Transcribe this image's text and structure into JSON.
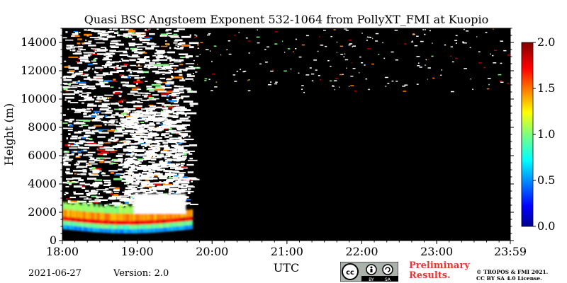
{
  "chart_data": {
    "type": "heatmap",
    "title": "Quasi BSC Angstoem Exponent 532-1064 from PollyXT_FMI at Kuopio",
    "xlabel": "UTC",
    "ylabel": "Height (m)",
    "x_ticks": [
      "18:00",
      "19:00",
      "20:00",
      "21:00",
      "22:00",
      "23:00",
      "23:59"
    ],
    "x_range_hours": [
      18.0,
      23.9833
    ],
    "y_ticks": [
      "0",
      "2000",
      "4000",
      "6000",
      "8000",
      "10000",
      "12000",
      "14000"
    ],
    "y_range_m": [
      0,
      15000
    ],
    "colorbar": {
      "ticks": [
        "0.0",
        "0.5",
        "1.0",
        "1.5",
        "2.0"
      ],
      "range": [
        0.0,
        2.0
      ],
      "colormap": "jet"
    },
    "background_color": "#000000",
    "regions": [
      {
        "x": [
          18.0,
          19.72
        ],
        "y": [
          600,
          1500
        ],
        "value": 0.6
      },
      {
        "x": [
          18.0,
          19.6
        ],
        "y": [
          1500,
          2200
        ],
        "value": 1.4
      },
      {
        "x": [
          18.05,
          19.65
        ],
        "y": [
          2200,
          3000
        ],
        "value": 1.0
      },
      {
        "x": [
          18.0,
          19.7
        ],
        "y": [
          3000,
          15000
        ],
        "value": "noisy, mostly above 2.0 (white)"
      },
      {
        "x": [
          19.7,
          23.9833
        ],
        "y": [
          0,
          15000
        ],
        "value": "no data (black)"
      }
    ]
  },
  "footer": {
    "date": "2021-06-27",
    "version": "Version: 2.0",
    "preliminary": [
      "Preliminary",
      "Results."
    ],
    "copyright": [
      "© TROPOS & FMI 2021.",
      "CC BY SA 4.0 License."
    ],
    "badge": {
      "cc": "cc",
      "by": "BY",
      "sa": "SA"
    }
  }
}
